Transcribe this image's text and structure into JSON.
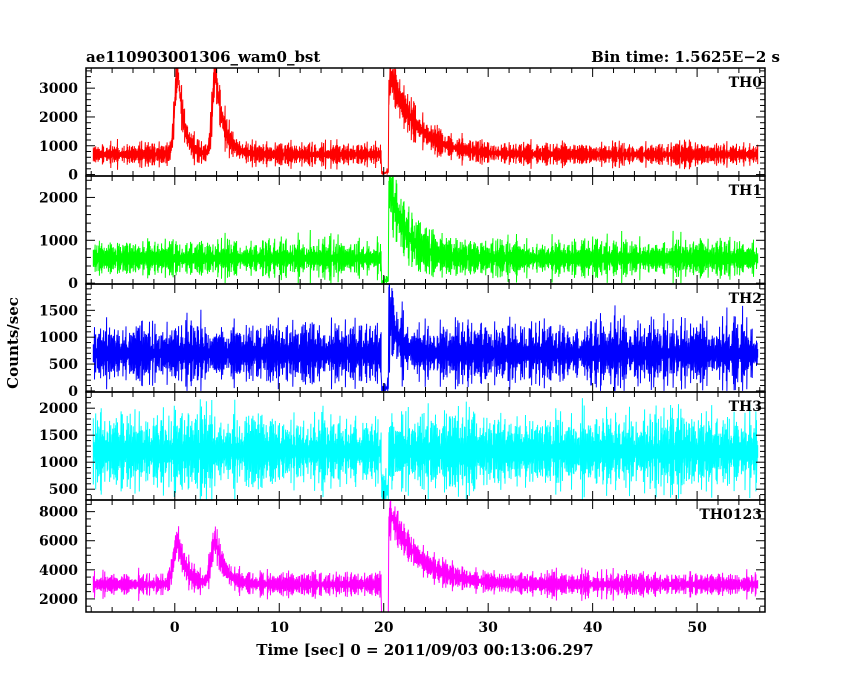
{
  "header": {
    "left_title": "ae110903001306_wam0_bst",
    "right_title": "Bin time: 1.5625E−2 s"
  },
  "chart_data": {
    "type": "line",
    "xlabel": "Time [sec] 0 = 2011/09/03 00:13:06.297",
    "ylabel": "Counts/sec",
    "xlim": [
      -8.5,
      56.5
    ],
    "x_ticks": [
      0,
      10,
      20,
      30,
      40,
      50
    ],
    "x_minor_step": 2,
    "panels": [
      {
        "name": "TH0",
        "color": "#ff0000",
        "ylim": [
          -50,
          3700
        ],
        "y_ticks": [
          0,
          1000,
          2000,
          3000
        ],
        "y_minor_step": 200,
        "baseline": 700,
        "noise": 170,
        "flares": [
          {
            "t": 0.3,
            "peak": 2900,
            "rise": 0.3,
            "decay": 0.6
          },
          {
            "t": 3.9,
            "peak": 2800,
            "rise": 0.3,
            "decay": 0.8
          },
          {
            "t": 20.7,
            "peak": 2700,
            "rise": 0.3,
            "decay": 2.5
          }
        ],
        "gaps": [
          {
            "t": 20.1,
            "depth": 0.95
          }
        ]
      },
      {
        "name": "TH1",
        "color": "#00ff00",
        "ylim": [
          -20,
          2500
        ],
        "y_ticks": [
          0,
          1000,
          2000
        ],
        "y_minor_step": 200,
        "baseline": 580,
        "noise": 190,
        "flares": [
          {
            "t": 20.6,
            "peak": 1600,
            "rise": 0.3,
            "decay": 1.6
          }
        ],
        "gaps": [
          {
            "t": 20.1,
            "depth": 0.95
          }
        ]
      },
      {
        "name": "TH2",
        "color": "#0000ff",
        "ylim": [
          -20,
          1990
        ],
        "y_ticks": [
          0,
          500,
          1000,
          1500
        ],
        "y_minor_step": 100,
        "baseline": 700,
        "noise": 250,
        "flares": [
          {
            "t": 20.5,
            "peak": 850,
            "rise": 0.2,
            "decay": 0.8
          }
        ],
        "gaps": [
          {
            "t": 20.1,
            "depth": 0.95
          }
        ]
      },
      {
        "name": "TH3",
        "color": "#00ffff",
        "ylim": [
          300,
          2300
        ],
        "y_ticks": [
          500,
          1000,
          1500,
          2000
        ],
        "y_minor_step": 100,
        "baseline": 1200,
        "noise": 300,
        "flares": [],
        "gaps": [
          {
            "t": 20.1,
            "depth": 0.6
          }
        ]
      },
      {
        "name": "TH0123",
        "color": "#ff00ff",
        "ylim": [
          1100,
          8800
        ],
        "y_ticks": [
          2000,
          4000,
          6000,
          8000
        ],
        "y_minor_step": 500,
        "baseline": 3000,
        "noise": 350,
        "flares": [
          {
            "t": 0.3,
            "peak": 3000,
            "rise": 0.4,
            "decay": 0.8
          },
          {
            "t": 3.9,
            "peak": 3000,
            "rise": 0.4,
            "decay": 0.9
          },
          {
            "t": 20.7,
            "peak": 4800,
            "rise": 0.3,
            "decay": 2.8
          }
        ],
        "gaps": [
          {
            "t": 20.1,
            "depth": 0.9
          }
        ]
      }
    ]
  }
}
